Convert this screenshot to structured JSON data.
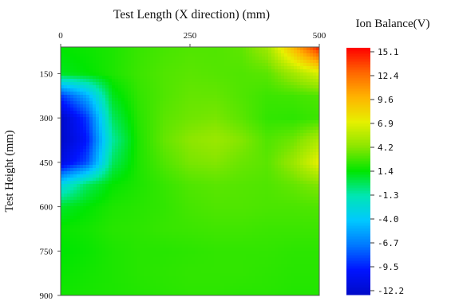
{
  "chart_data": {
    "type": "heatmap",
    "title": "",
    "xlabel": "Test Length (X direction) (mm)",
    "ylabel": "Test Height (mm)",
    "xlim": [
      0,
      500
    ],
    "ylim": [
      60,
      900
    ],
    "x_ticks": [
      {
        "value": 0,
        "label": "0"
      },
      {
        "value": 250,
        "label": "250"
      },
      {
        "value": 500,
        "label": "500"
      }
    ],
    "y_ticks": [
      {
        "value": 150,
        "label": "150"
      },
      {
        "value": 300,
        "label": "300"
      },
      {
        "value": 450,
        "label": "450"
      },
      {
        "value": 600,
        "label": "600"
      },
      {
        "value": 750,
        "label": "750"
      },
      {
        "value": 900,
        "label": "900"
      }
    ],
    "colorbar": {
      "label": "Ion Balance(V)",
      "min": -12.2,
      "max": 15.1,
      "ticks": [
        "15.1",
        "12.4",
        "9.6",
        "6.9",
        "4.2",
        "1.4",
        "-1.3",
        "-4.0",
        "-6.7",
        "-9.5",
        "-12.2"
      ],
      "colors": [
        "#ff0000",
        "#ff6600",
        "#ffb300",
        "#e6f000",
        "#8ce600",
        "#00e600",
        "#00e6b4",
        "#00c8ff",
        "#0078ff",
        "#0014ff",
        "#000ac8"
      ]
    },
    "x": [
      0,
      50,
      100,
      150,
      200,
      250,
      300,
      350,
      400,
      450,
      500
    ],
    "y": [
      60,
      150,
      225,
      300,
      375,
      450,
      525,
      600,
      675,
      750,
      825,
      900
    ],
    "z": [
      [
        1.5,
        1.7,
        2.0,
        2.5,
        2.8,
        3.0,
        3.0,
        3.3,
        4.8,
        9.5,
        14.5
      ],
      [
        1.0,
        1.4,
        2.0,
        2.6,
        3.0,
        3.2,
        3.1,
        3.0,
        3.2,
        4.8,
        6.5
      ],
      [
        -8.5,
        -5.0,
        1.0,
        2.4,
        3.0,
        3.4,
        3.4,
        3.0,
        2.6,
        2.7,
        3.0
      ],
      [
        -12.2,
        -8.5,
        0.0,
        2.2,
        3.2,
        3.6,
        3.8,
        3.2,
        2.4,
        2.3,
        2.6
      ],
      [
        -12.2,
        -9.5,
        -1.0,
        2.0,
        3.4,
        4.2,
        4.6,
        4.0,
        3.0,
        3.6,
        5.2
      ],
      [
        -11.0,
        -8.0,
        0.0,
        2.0,
        3.0,
        3.8,
        4.0,
        3.5,
        3.2,
        4.6,
        7.0
      ],
      [
        -3.0,
        0.0,
        1.5,
        2.0,
        2.5,
        3.0,
        3.2,
        3.1,
        3.0,
        3.4,
        4.0
      ],
      [
        0.8,
        1.4,
        2.0,
        2.2,
        2.4,
        2.8,
        3.0,
        3.0,
        2.9,
        2.9,
        3.0
      ],
      [
        1.6,
        1.8,
        2.2,
        2.3,
        2.5,
        2.6,
        2.7,
        2.7,
        2.6,
        2.6,
        2.6
      ],
      [
        1.4,
        1.6,
        2.0,
        2.2,
        2.2,
        2.3,
        2.4,
        2.4,
        2.4,
        2.3,
        2.3
      ],
      [
        1.6,
        1.8,
        2.0,
        2.2,
        2.3,
        2.4,
        2.4,
        2.4,
        2.3,
        2.2,
        2.2
      ],
      [
        1.8,
        1.9,
        2.0,
        2.1,
        2.2,
        2.3,
        2.3,
        2.2,
        2.2,
        2.1,
        2.1
      ]
    ]
  }
}
